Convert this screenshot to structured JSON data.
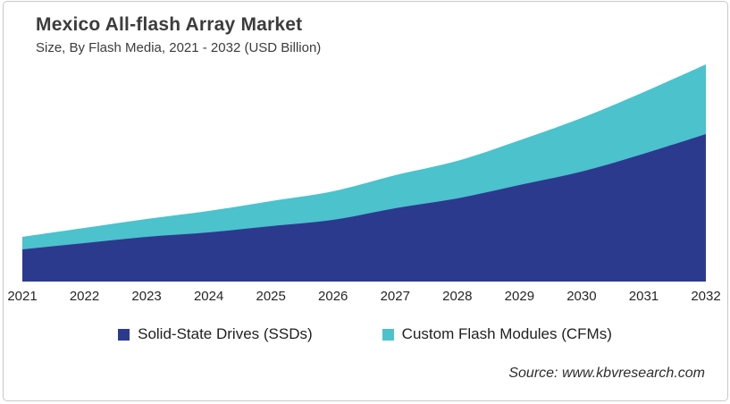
{
  "header": {
    "title": "Mexico All-flash Array Market",
    "subtitle": "Size, By Flash Media, 2021 - 2032 (USD Billion)"
  },
  "chart_data": {
    "type": "area",
    "stacked": true,
    "title": "Mexico All-flash Array Market",
    "subtitle": "Size, By Flash Media, 2021 - 2032 (USD Billion)",
    "xlabel": "",
    "ylabel": "USD Billion",
    "categories": [
      "2021",
      "2022",
      "2023",
      "2024",
      "2025",
      "2026",
      "2027",
      "2028",
      "2029",
      "2030",
      "2031",
      "2032"
    ],
    "series": [
      {
        "name": "Solid-State Drives (SSDs)",
        "color": "#2c3a8e",
        "values": [
          0.36,
          0.43,
          0.5,
          0.55,
          0.62,
          0.69,
          0.82,
          0.93,
          1.08,
          1.23,
          1.43,
          1.65
        ]
      },
      {
        "name": "Custom Flash Modules (CFMs)",
        "color": "#4bc2cc",
        "values": [
          0.14,
          0.17,
          0.2,
          0.24,
          0.28,
          0.32,
          0.37,
          0.42,
          0.5,
          0.6,
          0.69,
          0.78
        ]
      }
    ],
    "totals": [
      0.5,
      0.6,
      0.7,
      0.79,
      0.9,
      1.01,
      1.19,
      1.35,
      1.58,
      1.83,
      2.12,
      2.43
    ],
    "ylim": [
      0,
      2.6
    ],
    "y_axis_visible": false,
    "gridlines": false,
    "legend_position": "bottom",
    "note": "No y-axis or value labels shown in source image; series values are estimates read from stacked area heights."
  },
  "source": {
    "text": "Source: www.kbvresearch.com"
  }
}
